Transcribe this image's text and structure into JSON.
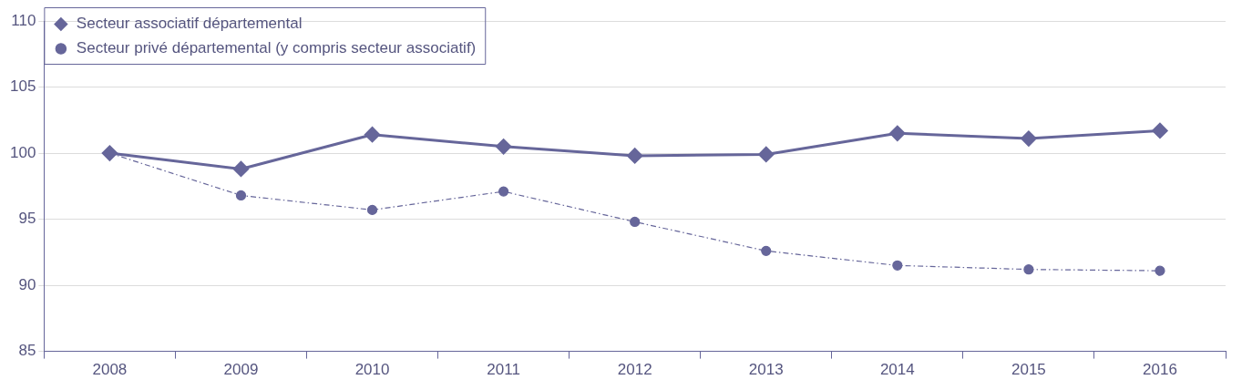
{
  "chart_data": {
    "type": "line",
    "categories": [
      "2008",
      "2009",
      "2010",
      "2011",
      "2012",
      "2013",
      "2014",
      "2015",
      "2016"
    ],
    "series": [
      {
        "name": "Secteur associatif départemental",
        "color": "#66669a",
        "marker": "diamond",
        "line_style": "solid",
        "values": [
          100,
          98.8,
          101.4,
          100.5,
          99.8,
          99.9,
          101.5,
          101.1,
          101.7
        ]
      },
      {
        "name": "Secteur privé départemental (y compris secteur associatif)",
        "color": "#66669a",
        "marker": "circle",
        "line_style": "dashdot",
        "values": [
          100,
          96.8,
          95.7,
          97.1,
          94.8,
          92.6,
          91.5,
          91.2,
          91.1
        ]
      }
    ],
    "ylim": [
      85,
      110
    ],
    "yticks": [
      85,
      90,
      95,
      100,
      105,
      110
    ],
    "grid": "y",
    "legend": "top"
  }
}
